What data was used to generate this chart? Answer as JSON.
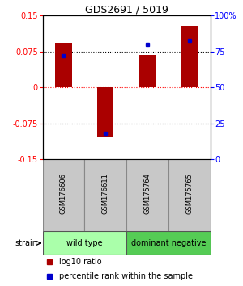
{
  "title": "GDS2691 / 5019",
  "samples": [
    "GSM176606",
    "GSM176611",
    "GSM175764",
    "GSM175765"
  ],
  "log10_ratio": [
    0.093,
    -0.105,
    0.068,
    0.128
  ],
  "percentile_rank": [
    72,
    18,
    80,
    83
  ],
  "ylim_left": [
    -0.15,
    0.15
  ],
  "ylim_right": [
    0,
    100
  ],
  "yticks_left": [
    -0.15,
    -0.075,
    0,
    0.075,
    0.15
  ],
  "yticks_right": [
    0,
    25,
    50,
    75,
    100
  ],
  "ytick_labels_left": [
    "-0.15",
    "-0.075",
    "0",
    "0.075",
    "0.15"
  ],
  "ytick_labels_right": [
    "0",
    "25",
    "50",
    "75",
    "100%"
  ],
  "hlines_black": [
    0.075,
    -0.075
  ],
  "hline_red": 0,
  "bar_color": "#aa0000",
  "dot_color": "#0000cc",
  "groups": [
    {
      "label": "wild type",
      "samples": [
        0,
        1
      ],
      "color": "#aaffaa"
    },
    {
      "label": "dominant negative",
      "samples": [
        2,
        3
      ],
      "color": "#55cc55"
    }
  ],
  "group_label": "strain",
  "legend_items": [
    {
      "color": "#aa0000",
      "label": "log10 ratio"
    },
    {
      "color": "#0000cc",
      "label": "percentile rank within the sample"
    }
  ],
  "bar_width": 0.4,
  "sample_box_color": "#c8c8c8",
  "sample_box_edge": "#888888"
}
